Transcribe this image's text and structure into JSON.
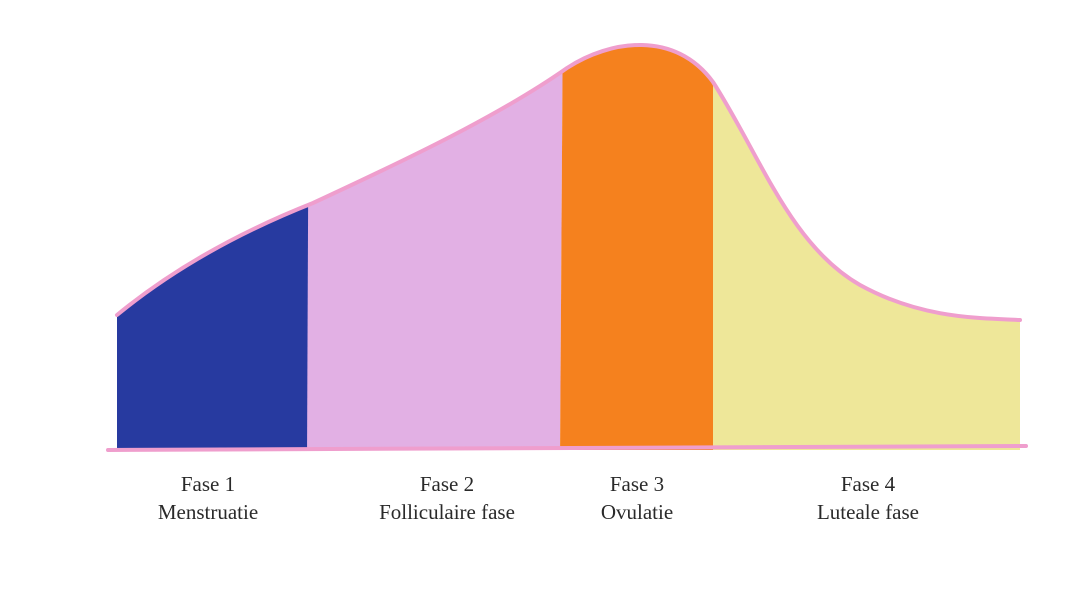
{
  "colors": {
    "outline": "#ef9ecd",
    "phase_1": "#273aa0",
    "phase_2": "#e2b0e4",
    "phase_3": "#f5811e",
    "phase_4": "#eee799",
    "text": "#2a2a2a"
  },
  "phases": [
    {
      "title": "Fase 1",
      "name": "Menstruatie",
      "color": "#273aa0"
    },
    {
      "title": "Fase 2",
      "name": "Folliculaire fase",
      "color": "#e2b0e4"
    },
    {
      "title": "Fase 3",
      "name": "Ovulatie",
      "color": "#f5811e"
    },
    {
      "title": "Fase 4",
      "name": "Luteale fase",
      "color": "#eee799"
    }
  ]
}
